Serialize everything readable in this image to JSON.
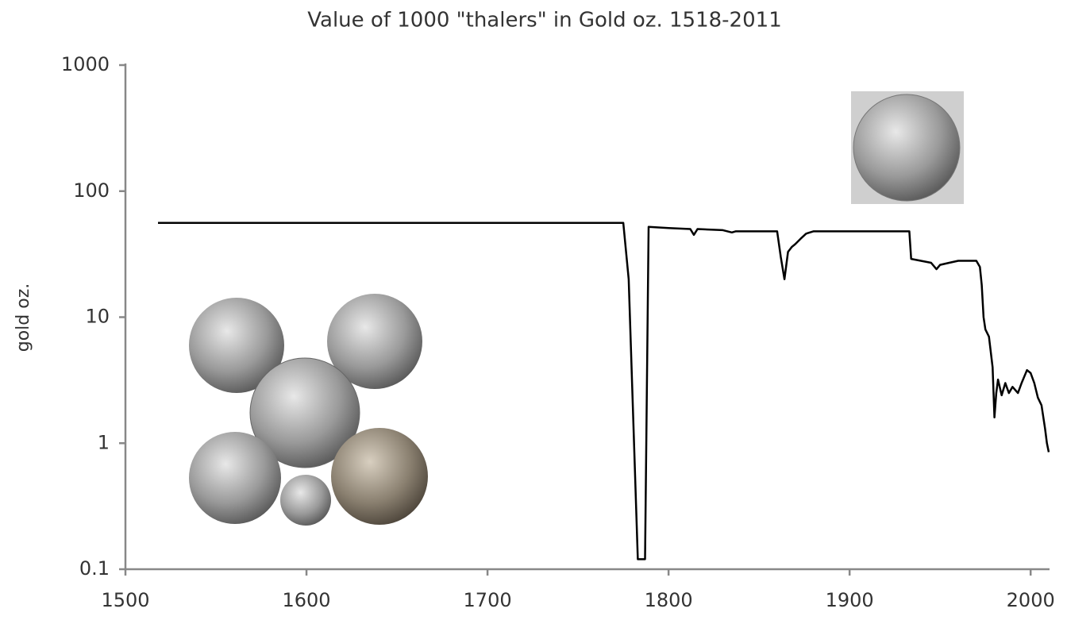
{
  "chart_data": {
    "type": "line",
    "title": "Value of 1000 \"thalers\" in Gold oz. 1518-2011",
    "ylabel": "gold oz.",
    "log_y": true,
    "grid": false,
    "xlim": [
      1500,
      2010
    ],
    "xticks": [
      1500,
      1600,
      1700,
      1800,
      1900,
      2000
    ],
    "ylim": [
      0.1,
      1000
    ],
    "yticks": [
      0.1,
      1,
      10,
      100,
      1000
    ],
    "x": [
      1518,
      1775,
      1778,
      1783,
      1787,
      1789,
      1800,
      1812,
      1814,
      1816,
      1830,
      1835,
      1837,
      1840,
      1860,
      1862,
      1864,
      1866,
      1868,
      1870,
      1873,
      1876,
      1880,
      1900,
      1933,
      1934,
      1945,
      1948,
      1950,
      1955,
      1960,
      1968,
      1970,
      1972,
      1973,
      1974,
      1975,
      1977,
      1979,
      1980,
      1981,
      1982,
      1984,
      1986,
      1988,
      1990,
      1993,
      1995,
      1998,
      2000,
      2002,
      2004,
      2006,
      2008,
      2009,
      2010
    ],
    "series": [
      {
        "color": "#000000",
        "values": [
          56,
          56,
          20,
          0.12,
          0.12,
          52,
          51,
          50,
          45,
          50,
          49,
          47,
          48,
          48,
          48,
          30,
          20,
          33,
          36,
          38,
          42,
          46,
          48,
          48,
          48,
          29,
          27,
          24,
          26,
          27,
          28,
          28,
          28,
          25,
          18,
          10,
          8,
          7,
          4,
          1.6,
          2.5,
          3.2,
          2.4,
          3,
          2.5,
          2.8,
          2.5,
          3,
          3.8,
          3.6,
          3,
          2.3,
          2,
          1.3,
          1,
          0.85
        ]
      }
    ]
  }
}
